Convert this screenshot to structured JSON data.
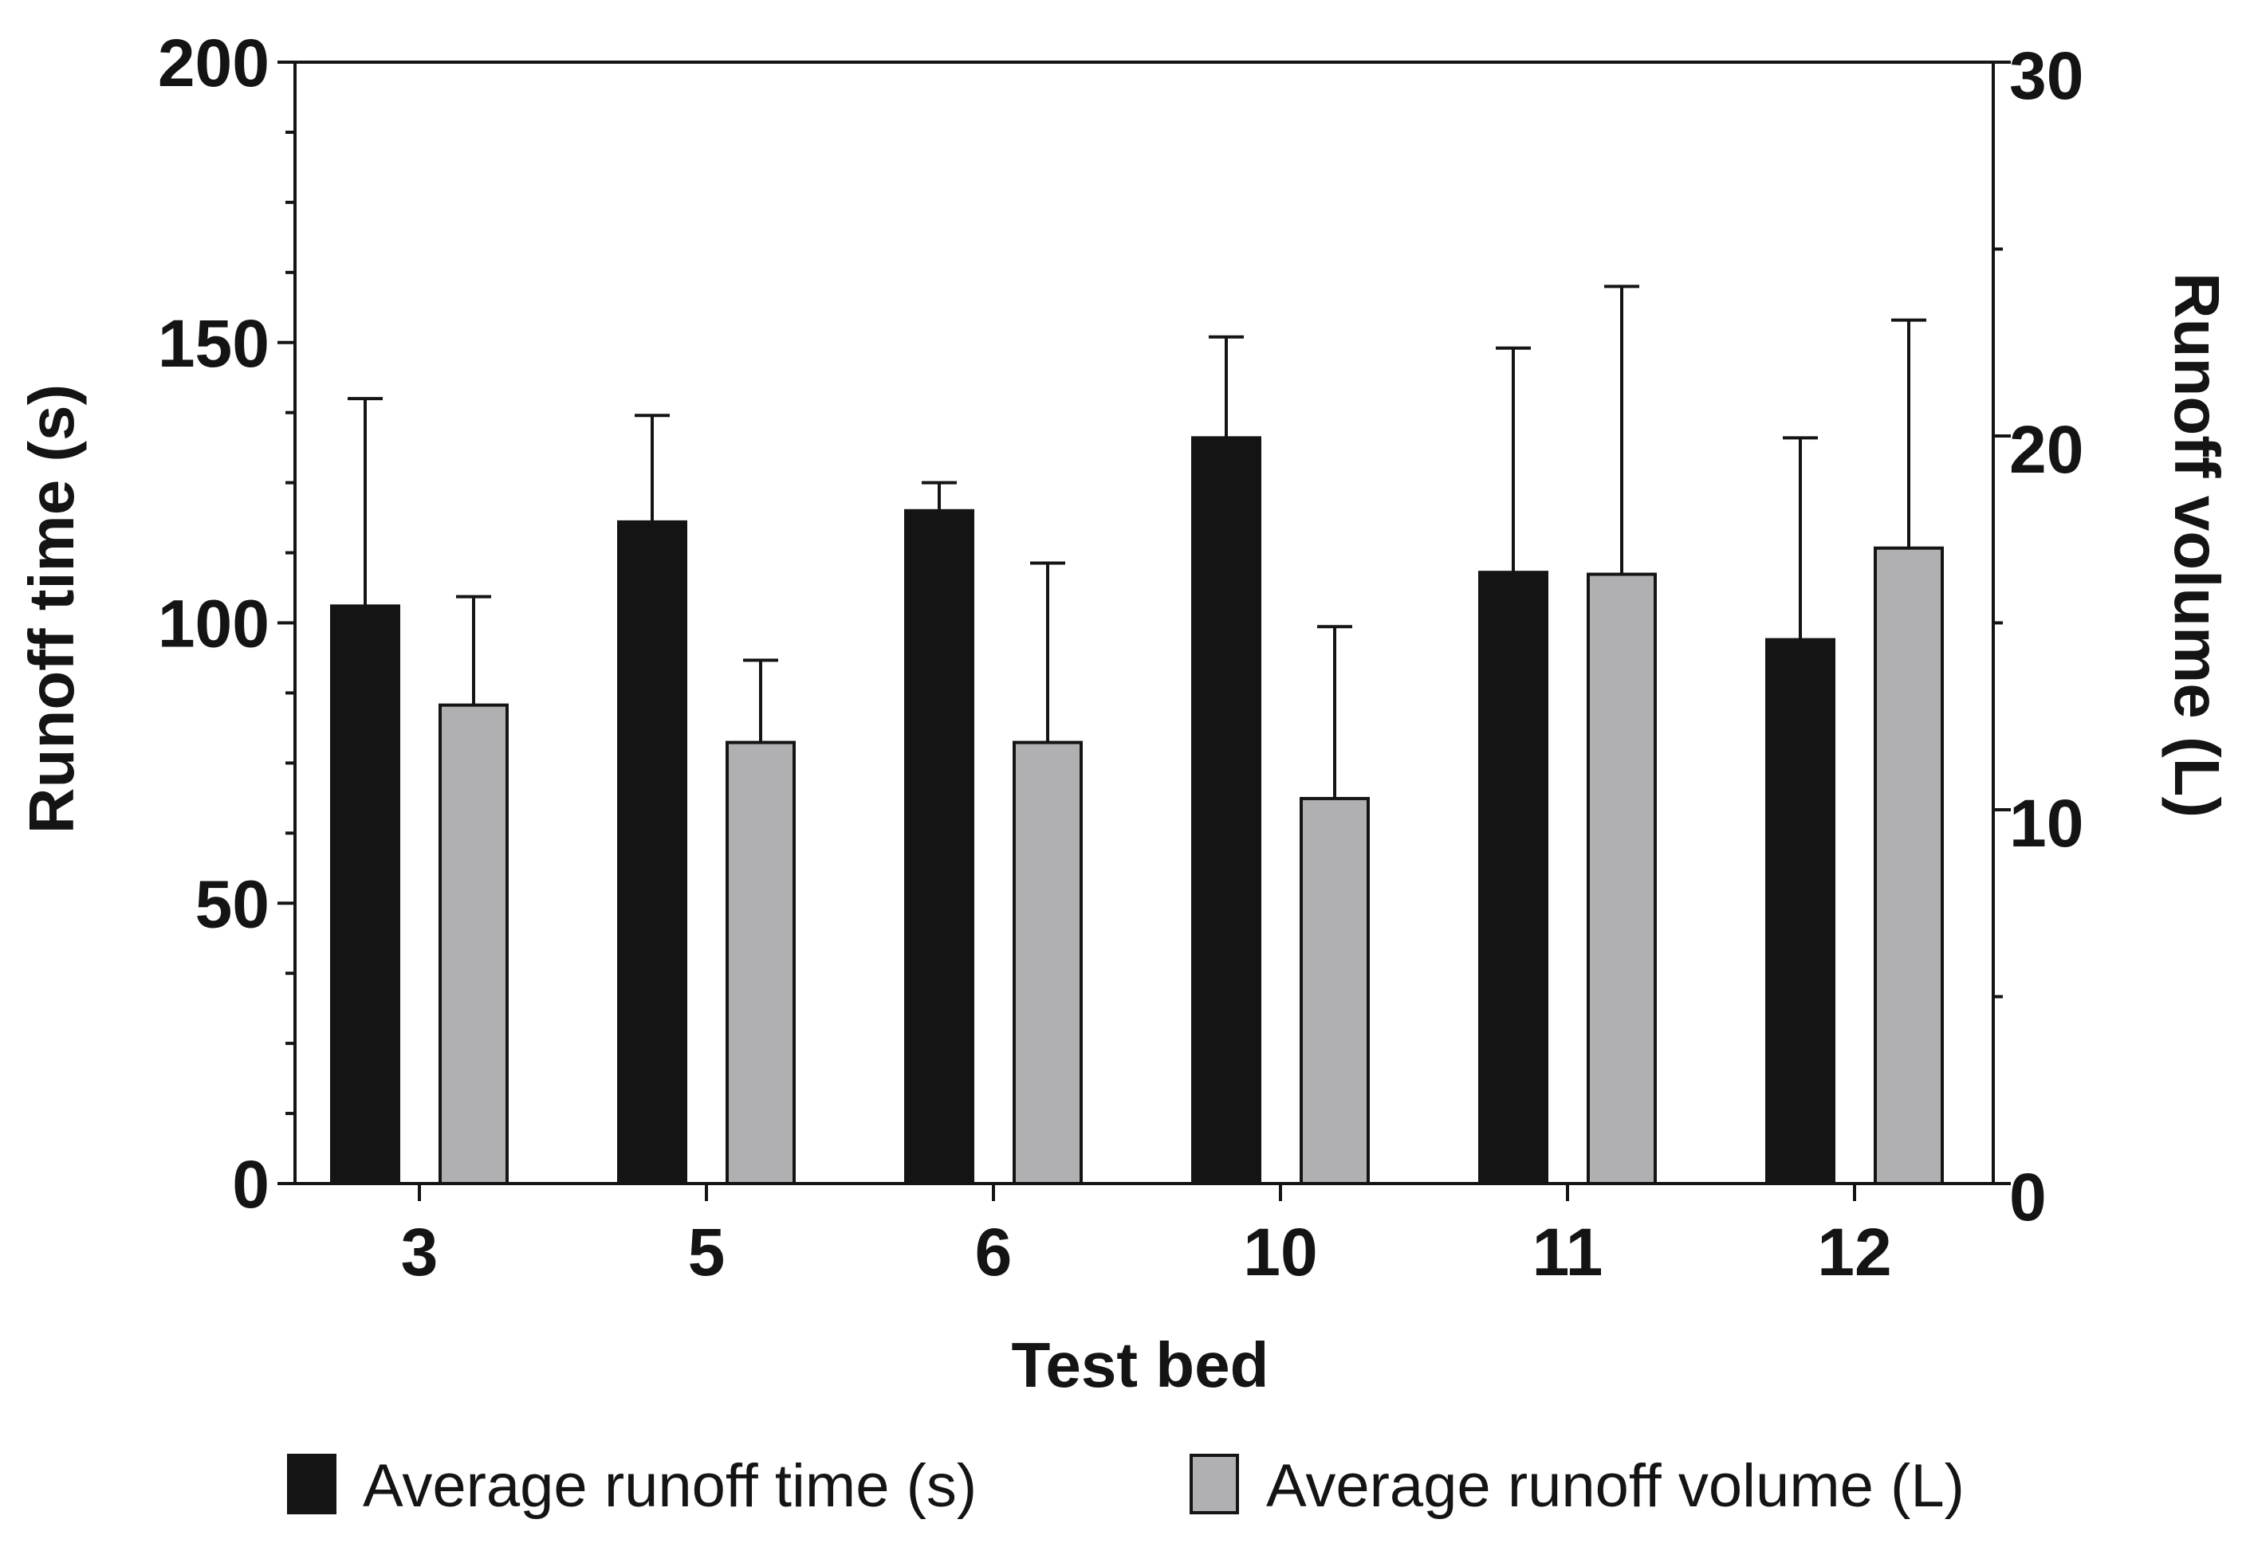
{
  "colors": {
    "series_time": "#141414",
    "series_volume": "#b0b0b2",
    "outline": "#141414",
    "background": "#ffffff"
  },
  "chart_data": {
    "type": "bar",
    "title": "",
    "xlabel": "Test bed",
    "ylabel": "Runoff time (s)",
    "y2label": "Runoff volume (L)",
    "categories": [
      "3",
      "5",
      "6",
      "10",
      "11",
      "12"
    ],
    "ylim": [
      0,
      200
    ],
    "y2lim": [
      0,
      30
    ],
    "yticks": [
      0,
      50,
      100,
      150,
      200
    ],
    "y2ticks": [
      0,
      10,
      20,
      30
    ],
    "grid": false,
    "legend_position": "bottom",
    "series": [
      {
        "name": "Average runoff time (s)",
        "axis": "left",
        "values": [
          103,
          118,
          120,
          133,
          109,
          97
        ],
        "errors": [
          37,
          19,
          5,
          18,
          40,
          36
        ]
      },
      {
        "name": "Average runoff volume (L)",
        "axis": "right",
        "values": [
          12.8,
          11.8,
          11.8,
          10.3,
          16.3,
          17.0
        ],
        "errors": [
          2.9,
          2.2,
          4.8,
          4.6,
          7.7,
          6.1
        ]
      }
    ]
  }
}
